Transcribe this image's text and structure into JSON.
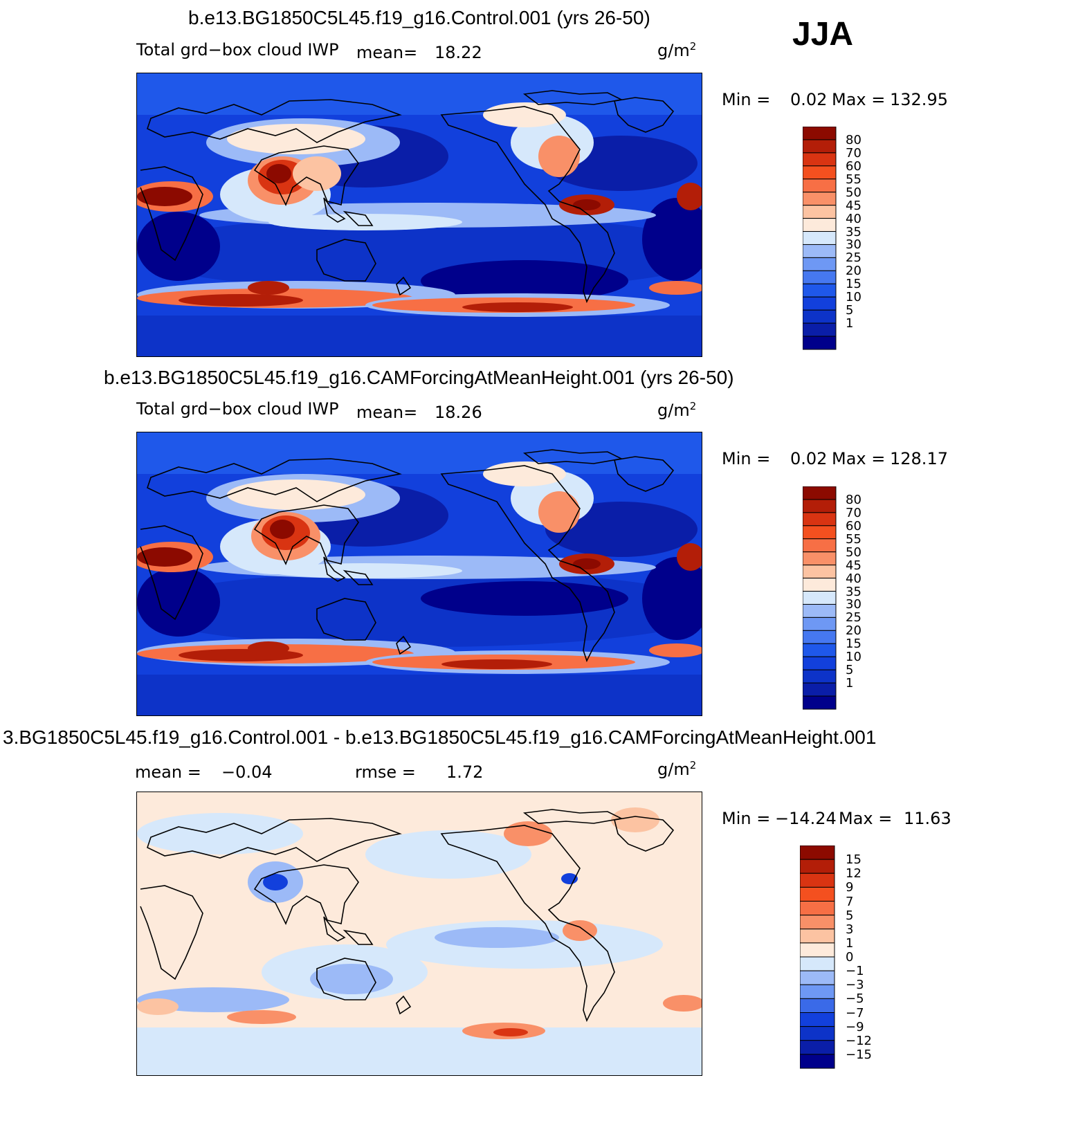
{
  "season": "JJA",
  "unit_base": "g/m",
  "unit_exp": "2",
  "colors": {
    "abs": [
      "#00008b",
      "#0a1ea8",
      "#0d33c8",
      "#1240dc",
      "#1f58ea",
      "#4678f0",
      "#6e98f4",
      "#9cbaf7",
      "#d6e8fb",
      "#fdeadb",
      "#fcc3a2",
      "#f99068",
      "#f76f45",
      "#f4501f",
      "#d93412",
      "#b31e08",
      "#8c0a00"
    ],
    "diff": [
      "#00008b",
      "#0a1ea8",
      "#0d33c8",
      "#1240dc",
      "#3a6ae8",
      "#6e98f4",
      "#9cbaf7",
      "#d6e8fb",
      "#fdeadb",
      "#fcc3a2",
      "#f99068",
      "#f76f45",
      "#f4501f",
      "#d93412",
      "#b31e08",
      "#8c0a00"
    ]
  },
  "panels": [
    {
      "title": "b.e13.BG1850C5L45.f19_g16.Control.001 (yrs 26-50)",
      "variable": "Total grd−box cloud IWP",
      "stat1_label": "mean=",
      "stat1_value": "18.22",
      "stat2_label": "",
      "stat2_value": "",
      "min_label": "Min =",
      "min_value": "0.02",
      "max_label": "Max =",
      "max_value": "132.95"
    },
    {
      "title": "b.e13.BG1850C5L45.f19_g16.CAMForcingAtMeanHeight.001 (yrs 26-50)",
      "variable": "Total grd−box cloud IWP",
      "stat1_label": "mean=",
      "stat1_value": "18.26",
      "stat2_label": "",
      "stat2_value": "",
      "min_label": "Min =",
      "min_value": "0.02",
      "max_label": "Max =",
      "max_value": "128.17"
    },
    {
      "title": "3.BG1850C5L45.f19_g16.Control.001 - b.e13.BG1850C5L45.f19_g16.CAMForcingAtMeanHeight.001",
      "variable": "",
      "stat1_label": "mean =",
      "stat1_value": "−0.04",
      "stat2_label": "rmse =",
      "stat2_value": "1.72",
      "min_label": "Min =",
      "min_value": "−14.24",
      "max_label": "Max =",
      "max_value": "11.63"
    }
  ],
  "chart_data": [
    {
      "type": "heatmap",
      "title": "b.e13.BG1850C5L45.f19_g16.Control.001 (yrs 26-50)",
      "variable": "Total grd-box cloud IWP",
      "units": "g/m2",
      "season": "JJA",
      "mean": 18.22,
      "min": 0.02,
      "max": 132.95,
      "colorbar_levels": [
        "80",
        "70",
        "60",
        "55",
        "50",
        "45",
        "40",
        "35",
        "30",
        "25",
        "20",
        "15",
        "10",
        "5",
        "1"
      ]
    },
    {
      "type": "heatmap",
      "title": "b.e13.BG1850C5L45.f19_g16.CAMForcingAtMeanHeight.001 (yrs 26-50)",
      "variable": "Total grd-box cloud IWP",
      "units": "g/m2",
      "season": "JJA",
      "mean": 18.26,
      "min": 0.02,
      "max": 128.17,
      "colorbar_levels": [
        "80",
        "70",
        "60",
        "55",
        "50",
        "45",
        "40",
        "35",
        "30",
        "25",
        "20",
        "15",
        "10",
        "5",
        "1"
      ]
    },
    {
      "type": "heatmap",
      "title": "Control.001 - CAMForcingAtMeanHeight.001",
      "units": "g/m2",
      "mean": -0.04,
      "rmse": 1.72,
      "min": -14.24,
      "max": 11.63,
      "colorbar_levels": [
        "15",
        "12",
        "9",
        "7",
        "5",
        "3",
        "1",
        "0",
        "−1",
        "−3",
        "−5",
        "−7",
        "−9",
        "−12",
        "−15"
      ]
    }
  ]
}
